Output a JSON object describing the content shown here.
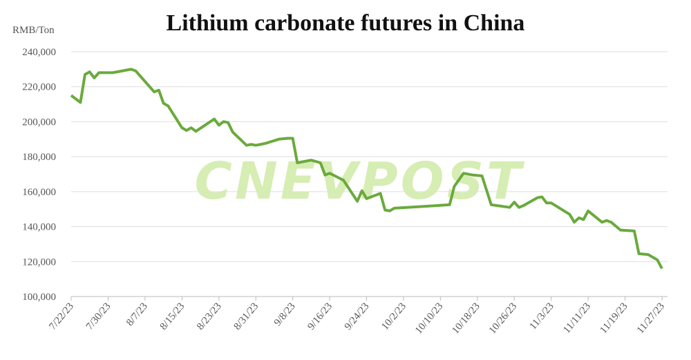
{
  "chart_data": {
    "type": "line",
    "title": "Lithium carbonate futures in China",
    "y_unit": "RMB/Ton",
    "watermark": "CNEVPOST",
    "x": [
      "7/22/23",
      "7/24/23",
      "7/25/23",
      "7/26/23",
      "7/27/23",
      "7/28/23",
      "7/31/23",
      "8/2/23",
      "8/4/23",
      "8/5/23",
      "8/9/23",
      "8/10/23",
      "8/11/23",
      "8/12/23",
      "8/15/23",
      "8/16/23",
      "8/17/23",
      "8/18/23",
      "8/22/23",
      "8/23/23",
      "8/24/23",
      "8/25/23",
      "8/26/23",
      "8/29/23",
      "8/30/23",
      "8/31/23",
      "9/1/23",
      "9/2/23",
      "9/5/23",
      "9/7/23",
      "9/8/23",
      "9/9/23",
      "9/12/23",
      "9/14/23",
      "9/15/23",
      "9/16/23",
      "9/19/23",
      "9/22/23",
      "9/23/23",
      "9/24/23",
      "9/25/23",
      "9/27/23",
      "9/28/23",
      "9/29/23",
      "9/30/23",
      "10/12/23",
      "10/13/23",
      "10/15/23",
      "10/17/23",
      "10/19/23",
      "10/21/23",
      "10/25/23",
      "10/26/23",
      "10/27/23",
      "10/28/23",
      "10/31/23",
      "11/1/23",
      "11/2/23",
      "11/3/23",
      "11/7/23",
      "11/8/23",
      "11/9/23",
      "11/10/23",
      "11/11/23",
      "11/14/23",
      "11/15/23",
      "11/16/23",
      "11/18/23",
      "11/21/23",
      "11/22/23",
      "11/24/23",
      "11/26/23",
      "11/27/23"
    ],
    "series": [
      {
        "name": "Lithium carbonate futures",
        "color": "#6aaa3c",
        "values": [
          215000,
          211000,
          227000,
          228500,
          225000,
          228000,
          228000,
          229000,
          230000,
          229000,
          217000,
          218000,
          210500,
          209000,
          196500,
          195000,
          196500,
          194500,
          201500,
          198000,
          200000,
          199500,
          194000,
          186500,
          187000,
          186500,
          187000,
          187500,
          190000,
          190500,
          190500,
          176500,
          178000,
          176500,
          169500,
          170500,
          166500,
          154500,
          160500,
          156000,
          157000,
          159000,
          149500,
          149000,
          150500,
          152500,
          163000,
          170500,
          169500,
          169000,
          152500,
          151000,
          154000,
          151000,
          152000,
          156500,
          157000,
          153500,
          153500,
          147000,
          142500,
          145000,
          144000,
          149000,
          142500,
          143500,
          142500,
          138000,
          137500,
          124500,
          124000,
          121000,
          116000
        ]
      }
    ],
    "xlim": [
      "7/22/23",
      "11/27/23"
    ],
    "xticks": [
      "7/22/23",
      "7/30/23",
      "8/7/23",
      "8/15/23",
      "8/23/23",
      "8/31/23",
      "9/8/23",
      "9/16/23",
      "9/24/23",
      "10/2/23",
      "10/10/23",
      "10/18/23",
      "10/26/23",
      "11/3/23",
      "11/11/23",
      "11/19/23",
      "11/27/23"
    ],
    "ylim": [
      100000,
      240000
    ],
    "yticks": [
      {
        "value": 100000,
        "label": "100,000"
      },
      {
        "value": 120000,
        "label": "120,000"
      },
      {
        "value": 140000,
        "label": "140,000"
      },
      {
        "value": 160000,
        "label": "160,000"
      },
      {
        "value": 180000,
        "label": "180,000"
      },
      {
        "value": 200000,
        "label": "200,000"
      },
      {
        "value": 220000,
        "label": "220,000"
      },
      {
        "value": 240000,
        "label": "240,000"
      }
    ],
    "grid": true
  }
}
